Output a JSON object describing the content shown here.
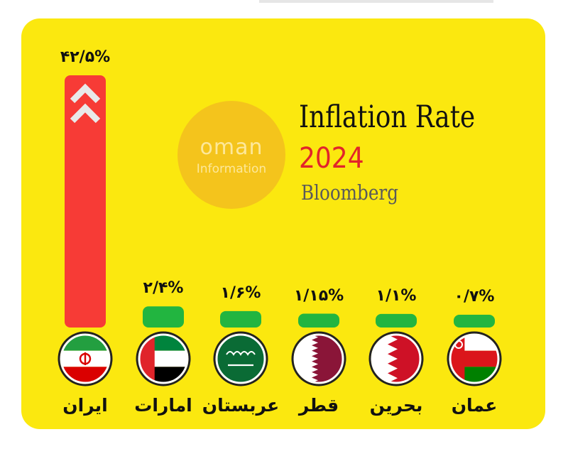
{
  "brand": {
    "name": "oman",
    "subtitle": "Information"
  },
  "chart_data": {
    "type": "bar",
    "title": "Inflation Rate",
    "year": "2024",
    "source": "Bloomberg",
    "categories": [
      "ایران",
      "امارات",
      "عربستان",
      "قطر",
      "بحرین",
      "عمان"
    ],
    "values": [
      42.5,
      2.4,
      1.6,
      1.15,
      1.1,
      0.7
    ],
    "value_labels": [
      "۴۲/۵%",
      "۲/۴%",
      "۱/۶%",
      "۱/۱۵%",
      "۱/۱%",
      "۰/۷%"
    ],
    "flags": [
      "iran-flag-icon",
      "uae-flag-icon",
      "saudi-flag-icon",
      "qatar-flag-icon",
      "bahrain-flag-icon",
      "oman-flag-icon"
    ],
    "colors": {
      "highlight": "#f73b36",
      "others": "#22b540",
      "background": "#fbe80f",
      "arrow": "#e9e9e9"
    },
    "ylabel": "",
    "xlabel": ""
  }
}
